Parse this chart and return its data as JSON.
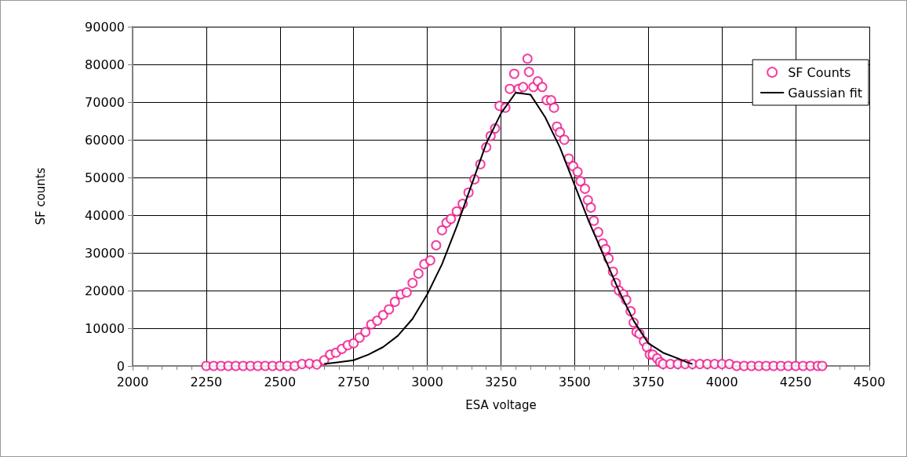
{
  "chart_data": {
    "type": "scatter",
    "xlabel": "ESA voltage",
    "ylabel": "SF counts",
    "xlim": [
      2000,
      4500
    ],
    "xticks": [
      2000,
      2250,
      2500,
      2750,
      3000,
      3250,
      3500,
      3750,
      4000,
      4250,
      4500
    ],
    "ylim": [
      0,
      90000
    ],
    "yticks": [
      0,
      10000,
      20000,
      30000,
      40000,
      50000,
      60000,
      70000,
      80000,
      90000
    ],
    "grid": true,
    "legend": "top right",
    "series": [
      {
        "name": "SF Counts",
        "marker": "circle",
        "color": "#ee1289",
        "x": [
          2250,
          2275,
          2300,
          2325,
          2350,
          2375,
          2400,
          2425,
          2450,
          2475,
          2500,
          2525,
          2550,
          2575,
          2600,
          2625,
          2650,
          2670,
          2690,
          2710,
          2730,
          2750,
          2770,
          2790,
          2810,
          2830,
          2850,
          2870,
          2890,
          2910,
          2930,
          2950,
          2970,
          2990,
          3010,
          3030,
          3050,
          3065,
          3080,
          3100,
          3120,
          3140,
          3160,
          3180,
          3200,
          3215,
          3230,
          3245,
          3265,
          3280,
          3295,
          3310,
          3325,
          3340,
          3345,
          3360,
          3375,
          3390,
          3405,
          3420,
          3430,
          3440,
          3450,
          3465,
          3480,
          3495,
          3510,
          3520,
          3535,
          3545,
          3555,
          3565,
          3580,
          3595,
          3605,
          3615,
          3630,
          3640,
          3650,
          3665,
          3675,
          3690,
          3700,
          3710,
          3720,
          3735,
          3745,
          3755,
          3765,
          3780,
          3790,
          3800,
          3825,
          3850,
          3875,
          3900,
          3925,
          3950,
          3975,
          4000,
          4025,
          4050,
          4075,
          4100,
          4125,
          4150,
          4175,
          4200,
          4225,
          4250,
          4275,
          4300,
          4325,
          4340
        ],
        "values": [
          0,
          0,
          0,
          0,
          0,
          0,
          0,
          0,
          0,
          0,
          0,
          0,
          0,
          500,
          600,
          400,
          1500,
          3000,
          3500,
          4500,
          5500,
          6000,
          7500,
          9000,
          11000,
          12000,
          13500,
          15000,
          17000,
          19000,
          19500,
          22000,
          24500,
          27000,
          28000,
          32000,
          36000,
          38000,
          39000,
          41000,
          43000,
          46000,
          49500,
          53500,
          58000,
          61000,
          63000,
          69000,
          68500,
          73500,
          77500,
          73500,
          74000,
          81500,
          78000,
          74000,
          75500,
          74000,
          70500,
          70500,
          68500,
          63500,
          62000,
          60000,
          55000,
          53000,
          51500,
          49000,
          47000,
          44000,
          42000,
          38500,
          35500,
          32500,
          31000,
          28500,
          25000,
          22000,
          20000,
          19000,
          17500,
          14500,
          11500,
          9000,
          8500,
          6500,
          5000,
          3000,
          3000,
          2000,
          1000,
          500,
          500,
          500,
          500,
          500,
          500,
          500,
          500,
          500,
          500,
          0,
          0,
          0,
          0,
          0,
          0,
          0,
          0,
          0,
          0,
          0,
          0,
          0
        ]
      },
      {
        "name": "Gaussian fit",
        "type": "line",
        "marker": "none",
        "line_style": "solid",
        "color": "#000000",
        "x": [
          2650,
          2700,
          2750,
          2800,
          2850,
          2900,
          2950,
          3000,
          3050,
          3100,
          3150,
          3200,
          3250,
          3300,
          3350,
          3400,
          3450,
          3500,
          3550,
          3600,
          3650,
          3700,
          3750,
          3800,
          3850,
          3880,
          3900
        ],
        "values": [
          500,
          1000,
          1500,
          3000,
          5000,
          8000,
          12500,
          19000,
          27000,
          37000,
          48000,
          59000,
          67000,
          72500,
          72000,
          66000,
          58000,
          48000,
          38000,
          29000,
          20000,
          12000,
          6000,
          3500,
          2000,
          1000,
          500
        ]
      }
    ]
  }
}
